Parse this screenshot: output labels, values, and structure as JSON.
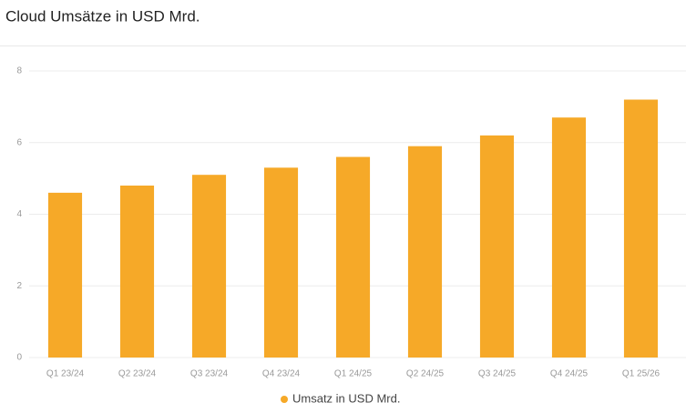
{
  "chart_data": {
    "type": "bar",
    "title": "Cloud Umsätze in USD Mrd.",
    "categories": [
      "Q1 23/24",
      "Q2 23/24",
      "Q3 23/24",
      "Q4 23/24",
      "Q1 24/25",
      "Q2 24/25",
      "Q3 24/25",
      "Q4 24/25",
      "Q1 25/26"
    ],
    "series": [
      {
        "name": "Umsatz in USD Mrd.",
        "color": "#f6a928",
        "values": [
          4.6,
          4.8,
          5.1,
          5.3,
          5.6,
          5.9,
          6.2,
          6.7,
          7.2
        ]
      }
    ],
    "ylim": [
      0,
      8
    ],
    "yticks": [
      0,
      2,
      4,
      6,
      8
    ],
    "grid": true,
    "legend": "bottom"
  }
}
